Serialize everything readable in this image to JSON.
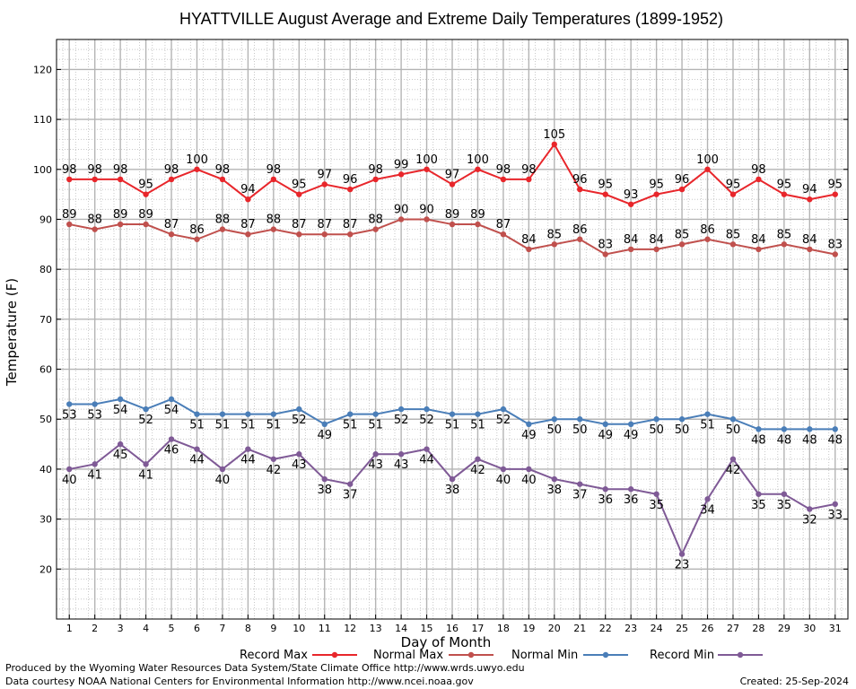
{
  "chart_data": {
    "type": "line",
    "title": "HYATTVILLE August Average and Extreme Daily Temperatures (1899-1952)",
    "xlabel": "Day of Month",
    "ylabel": "Temperature (F)",
    "x": [
      1,
      2,
      3,
      4,
      5,
      6,
      7,
      8,
      9,
      10,
      11,
      12,
      13,
      14,
      15,
      16,
      17,
      18,
      19,
      20,
      21,
      22,
      23,
      24,
      25,
      26,
      27,
      28,
      29,
      30,
      31
    ],
    "xlim": [
      0.5,
      31.5
    ],
    "ylim": [
      10,
      126
    ],
    "yticks": [
      20,
      30,
      40,
      50,
      60,
      70,
      80,
      90,
      100,
      110,
      120
    ],
    "grid": true,
    "legend_position": "bottom",
    "series": [
      {
        "name": "Record Max",
        "color": "#e8262b",
        "values": [
          98,
          98,
          98,
          95,
          98,
          100,
          98,
          94,
          98,
          95,
          97,
          96,
          98,
          99,
          100,
          97,
          100,
          98,
          98,
          105,
          96,
          95,
          93,
          95,
          96,
          100,
          95,
          98,
          95,
          94,
          95
        ]
      },
      {
        "name": "Normal Max",
        "color": "#c0504d",
        "values": [
          89,
          88,
          89,
          89,
          87,
          86,
          88,
          87,
          88,
          87,
          87,
          87,
          88,
          90,
          90,
          89,
          89,
          87,
          84,
          85,
          86,
          83,
          84,
          84,
          85,
          86,
          85,
          84,
          85,
          84,
          83
        ]
      },
      {
        "name": "Normal Min",
        "color": "#4a7eb8",
        "values": [
          53,
          53,
          54,
          52,
          54,
          51,
          51,
          51,
          51,
          52,
          49,
          51,
          51,
          52,
          52,
          51,
          51,
          52,
          49,
          50,
          50,
          49,
          49,
          50,
          50,
          51,
          50,
          48,
          48,
          48,
          48
        ]
      },
      {
        "name": "Record Min",
        "color": "#7f5a96",
        "values": [
          40,
          41,
          45,
          41,
          46,
          44,
          40,
          44,
          42,
          43,
          38,
          37,
          43,
          43,
          44,
          38,
          42,
          40,
          40,
          38,
          37,
          36,
          36,
          35,
          23,
          34,
          42,
          35,
          35,
          32,
          33
        ]
      }
    ]
  },
  "footer": {
    "credit_line1": "Produced by the Wyoming Water Resources Data System/State Climate Office http://www.wrds.uwyo.edu",
    "credit_line2": "Data courtesy NOAA National Centers for Environmental Information http://www.ncei.noaa.gov",
    "created": "Created:  25-Sep-2024"
  }
}
